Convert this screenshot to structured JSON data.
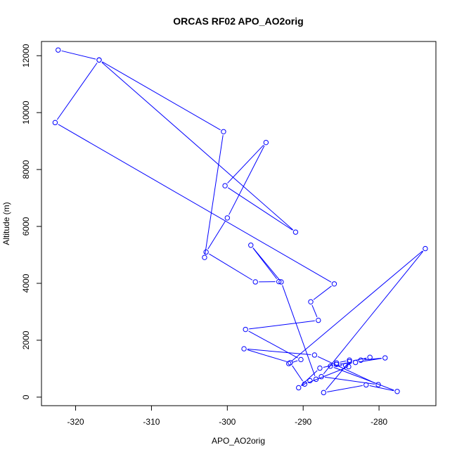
{
  "chart_data": {
    "type": "line",
    "title": "ORCAS RF02 APO_AO2orig",
    "xlabel": "APO_AO2orig",
    "ylabel": "Altitude (m)",
    "xlim": [
      -324.5,
      -272.5
    ],
    "ylim": [
      -300,
      12500
    ],
    "xticks": [
      -320,
      -310,
      -300,
      -290,
      -280
    ],
    "yticks": [
      0,
      2000,
      4000,
      6000,
      8000,
      10000,
      12000
    ],
    "grid": false,
    "legend": "none",
    "series_color": "#0000ff",
    "marker": "open-circle",
    "x": [
      -322.3,
      -316.9,
      -322.7,
      -285.9,
      -289.0,
      -288.0,
      -297.6,
      -290.3,
      -291.9,
      -273.9,
      -287.6,
      -280.1,
      -288.5,
      -297.8,
      -291.7,
      -289.8,
      -284.0,
      -283.9,
      -285.6,
      -284.4,
      -286.4,
      -277.6,
      -281.7,
      -287.3,
      -283.9,
      -281.2,
      -282.4,
      -279.2,
      -283.1,
      -285.6,
      -287.8,
      -290.6,
      -289.1,
      -288.3,
      -292.9,
      -296.9,
      -293.2,
      -296.3,
      -302.8,
      -300.0,
      -294.9,
      -300.3,
      -291.0,
      -316.9,
      -300.5,
      -303.0
    ],
    "y": [
      12200,
      11850,
      9650,
      3980,
      3350,
      2700,
      2380,
      1320,
      1180,
      5220,
      720,
      440,
      1480,
      1700,
      1210,
      460,
      1070,
      1300,
      1200,
      1120,
      1090,
      200,
      430,
      160,
      1250,
      1400,
      1300,
      1380,
      1220,
      1150,
      1020,
      330,
      580,
      630,
      4050,
      5340,
      4060,
      4050,
      5100,
      6300,
      8950,
      7430,
      5800,
      11850,
      9330,
      4910
    ]
  }
}
